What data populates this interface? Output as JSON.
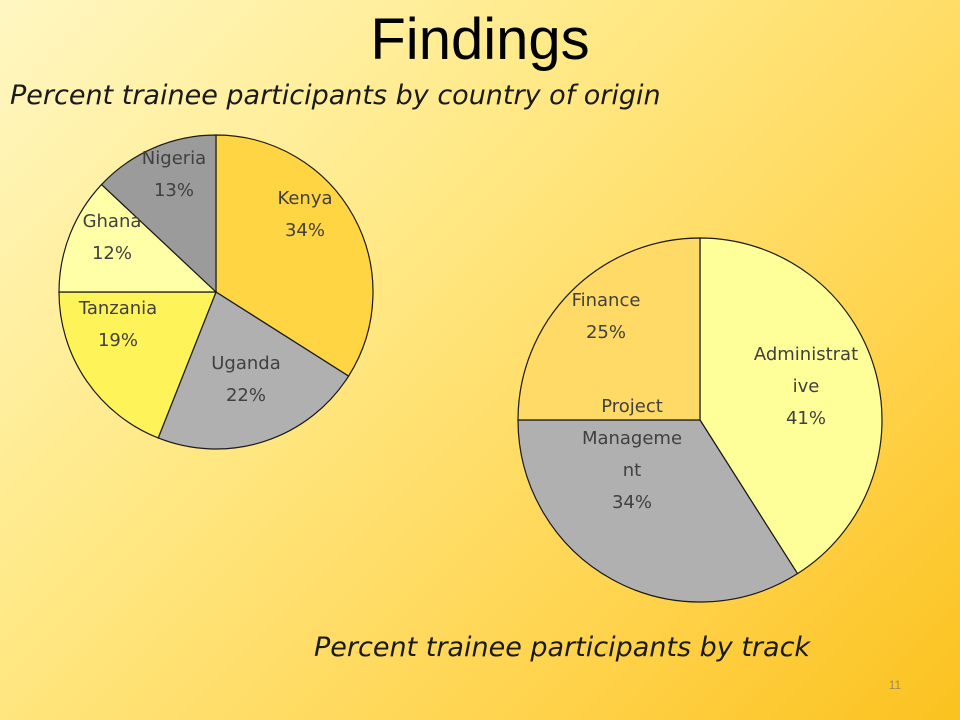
{
  "slide": {
    "title": "Findings",
    "subtitle_country": "Percent trainee participants by country of origin",
    "subtitle_track": "Percent trainee participants by track",
    "slide_number": "11"
  },
  "chart_data": [
    {
      "type": "pie",
      "title": "Percent trainee participants by country of origin",
      "start_angle_deg": 0,
      "direction": "clockwise",
      "slices": [
        {
          "label": "Kenya",
          "value": 34,
          "value_label": "34%",
          "color": "#ffd544"
        },
        {
          "label": "Uganda",
          "value": 22,
          "value_label": "22%",
          "color": "#b0b0b0"
        },
        {
          "label": "Tanzania",
          "value": 19,
          "value_label": "19%",
          "color": "#fff35a"
        },
        {
          "label": "Ghana",
          "value": 12,
          "value_label": "12%",
          "color": "#ffffa8"
        },
        {
          "label": "Nigeria",
          "value": 13,
          "value_label": "13%",
          "color": "#9b9b9b"
        }
      ]
    },
    {
      "type": "pie",
      "title": "Percent trainee participants by track",
      "start_angle_deg": 0,
      "direction": "clockwise",
      "slices": [
        {
          "label": "Administrat\nive",
          "value": 41,
          "value_label": "41%",
          "color": "#ffff9a"
        },
        {
          "label": "Project\nManageme\nnt",
          "value": 34,
          "value_label": "34%",
          "color": "#b0b0b0"
        },
        {
          "label": "Finance",
          "value": 25,
          "value_label": "25%",
          "color": "#ffda66"
        }
      ]
    }
  ]
}
